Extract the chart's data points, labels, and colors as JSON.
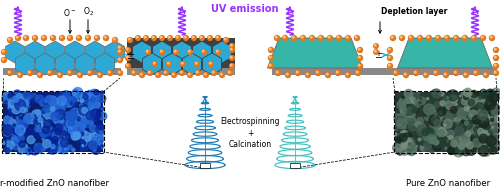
{
  "bg_color": "#ffffff",
  "uv_label": "UV emission",
  "uv_color": "#9933ff",
  "depletion_label": "Depletion layer",
  "electrospinning_label": "Electrospinning\n+\nCalcination",
  "pr_label": "Pr-modified ZnO nanofiber",
  "pure_label": "Pure ZnO nanofiber",
  "o_minus_label": "O",
  "o2_label": "O",
  "pm_label": "±",
  "cyan_hex": "#2ea8d5",
  "teal_hex": "#36b5a8",
  "dark_gray_hex": "#555555",
  "orange_hex": "#e07820",
  "helix_left_color": "#1a7ab5",
  "helix_right_color": "#40c0c0",
  "font_size_label": 6.5,
  "font_size_small": 5.5,
  "font_size_tiny": 4.5
}
